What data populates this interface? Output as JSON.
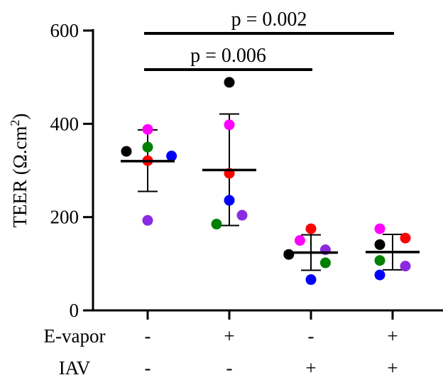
{
  "chart_data": {
    "type": "scatter",
    "ylabel_main": "TEER (Ω.cm",
    "ylabel_sup": "2",
    "ylabel_close": ")",
    "ylim": [
      0,
      600
    ],
    "yticks": [
      "0",
      "200",
      "400",
      "600"
    ],
    "conditions": [
      {
        "label": "E-vapor",
        "values": [
          "-",
          "+",
          "-",
          "+"
        ]
      },
      {
        "label": "IAV",
        "values": [
          "-",
          "-",
          "+",
          "+"
        ]
      }
    ],
    "groups": [
      {
        "mean": 320,
        "sd_low": 255,
        "sd_high": 387,
        "points": [
          {
            "value": 341,
            "color": "#000000",
            "jitter": -0.25
          },
          {
            "value": 388,
            "color": "#ff00ff",
            "jitter": 0.0
          },
          {
            "value": 350,
            "color": "#007f00",
            "jitter": 0.0
          },
          {
            "value": 331,
            "color": "#0000ff",
            "jitter": 0.28
          },
          {
            "value": 321,
            "color": "#ff0000",
            "jitter": 0.0
          },
          {
            "value": 193,
            "color": "#8a2be2",
            "jitter": 0.0
          }
        ]
      },
      {
        "mean": 301,
        "sd_low": 182,
        "sd_high": 421,
        "points": [
          {
            "value": 489,
            "color": "#000000",
            "jitter": 0.0
          },
          {
            "value": 398,
            "color": "#ff00ff",
            "jitter": 0.0
          },
          {
            "value": 294,
            "color": "#ff0000",
            "jitter": 0.0
          },
          {
            "value": 236,
            "color": "#0000ff",
            "jitter": 0.0
          },
          {
            "value": 204,
            "color": "#8a2be2",
            "jitter": 0.15
          },
          {
            "value": 185,
            "color": "#007f00",
            "jitter": -0.15
          }
        ]
      },
      {
        "mean": 124,
        "sd_low": 86,
        "sd_high": 162,
        "points": [
          {
            "value": 175,
            "color": "#ff0000",
            "jitter": 0.0
          },
          {
            "value": 150,
            "color": "#ff00ff",
            "jitter": -0.13
          },
          {
            "value": 130,
            "color": "#8a2be2",
            "jitter": 0.17
          },
          {
            "value": 120,
            "color": "#000000",
            "jitter": -0.26
          },
          {
            "value": 102,
            "color": "#007f00",
            "jitter": 0.17
          },
          {
            "value": 66,
            "color": "#0000ff",
            "jitter": 0.0
          }
        ]
      },
      {
        "mean": 125,
        "sd_low": 87,
        "sd_high": 163,
        "points": [
          {
            "value": 175,
            "color": "#ff00ff",
            "jitter": -0.15
          },
          {
            "value": 155,
            "color": "#ff0000",
            "jitter": 0.15
          },
          {
            "value": 141,
            "color": "#000000",
            "jitter": -0.15
          },
          {
            "value": 107,
            "color": "#007f00",
            "jitter": -0.15
          },
          {
            "value": 95,
            "color": "#8a2be2",
            "jitter": 0.15
          },
          {
            "value": 76,
            "color": "#0000ff",
            "jitter": -0.15
          }
        ]
      }
    ],
    "comparisons": [
      {
        "from": 0,
        "to": 3,
        "label": "p = 0.002",
        "level": 2
      },
      {
        "from": 0,
        "to": 2,
        "label": "p = 0.006",
        "level": 1
      }
    ]
  }
}
